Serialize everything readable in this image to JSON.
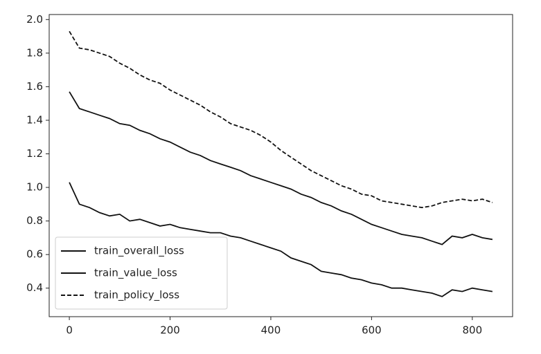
{
  "chart_data": {
    "type": "line",
    "x": [
      0,
      20,
      40,
      60,
      80,
      100,
      120,
      140,
      160,
      180,
      200,
      220,
      240,
      260,
      280,
      300,
      320,
      340,
      360,
      380,
      400,
      420,
      440,
      460,
      480,
      500,
      520,
      540,
      560,
      580,
      600,
      620,
      640,
      660,
      680,
      700,
      720,
      740,
      760,
      780,
      800,
      820,
      840
    ],
    "series": [
      {
        "name": "train_overall_loss",
        "color": "#111111",
        "linestyle": "solid",
        "values": [
          1.57,
          1.47,
          1.45,
          1.43,
          1.41,
          1.38,
          1.37,
          1.34,
          1.32,
          1.29,
          1.27,
          1.24,
          1.21,
          1.19,
          1.16,
          1.14,
          1.12,
          1.1,
          1.07,
          1.05,
          1.03,
          1.01,
          0.99,
          0.96,
          0.94,
          0.91,
          0.89,
          0.86,
          0.84,
          0.81,
          0.78,
          0.76,
          0.74,
          0.72,
          0.71,
          0.7,
          0.68,
          0.66,
          0.71,
          0.7,
          0.72,
          0.7,
          0.69
        ]
      },
      {
        "name": "train_value_loss",
        "color": "#111111",
        "linestyle": "solid",
        "values": [
          1.03,
          0.9,
          0.88,
          0.85,
          0.83,
          0.84,
          0.8,
          0.81,
          0.79,
          0.77,
          0.78,
          0.76,
          0.75,
          0.74,
          0.73,
          0.73,
          0.71,
          0.7,
          0.68,
          0.66,
          0.64,
          0.62,
          0.58,
          0.56,
          0.54,
          0.5,
          0.49,
          0.48,
          0.46,
          0.45,
          0.43,
          0.42,
          0.4,
          0.4,
          0.39,
          0.38,
          0.37,
          0.35,
          0.39,
          0.38,
          0.4,
          0.39,
          0.38
        ]
      },
      {
        "name": "train_policy_loss",
        "color": "#111111",
        "linestyle": "dashed",
        "values": [
          1.93,
          1.83,
          1.82,
          1.8,
          1.78,
          1.74,
          1.71,
          1.67,
          1.64,
          1.62,
          1.58,
          1.55,
          1.52,
          1.49,
          1.45,
          1.42,
          1.38,
          1.36,
          1.34,
          1.31,
          1.27,
          1.22,
          1.18,
          1.14,
          1.1,
          1.07,
          1.04,
          1.01,
          0.99,
          0.96,
          0.95,
          0.92,
          0.91,
          0.9,
          0.89,
          0.88,
          0.89,
          0.91,
          0.92,
          0.93,
          0.92,
          0.93,
          0.91
        ]
      }
    ],
    "xlim": [
      -40,
      880
    ],
    "ylim": [
      0.23,
      2.03
    ],
    "xticks": [
      0,
      200,
      400,
      600,
      800
    ],
    "yticks": [
      0.4,
      0.6,
      0.8,
      {
        "value": 1.0,
        "label": "1.0"
      },
      1.2,
      1.4,
      1.6,
      1.8,
      {
        "value": 2.0,
        "label": "2.0"
      }
    ],
    "legend": "lower left"
  }
}
